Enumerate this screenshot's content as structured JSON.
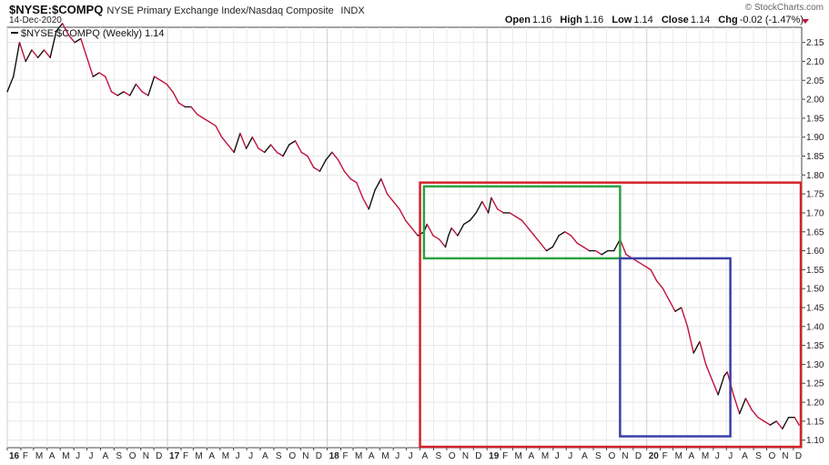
{
  "header": {
    "symbol": "$NYSE:$COMPQ",
    "name": "NYSE Primary Exchange Index/Nasdaq Composite",
    "exchange": "INDX",
    "date": "14-Dec-2020",
    "brand": "© StockCharts.com",
    "open_label": "Open",
    "open": "1.16",
    "high_label": "High",
    "high": "1.16",
    "low_label": "Low",
    "low": "1.14",
    "close_label": "Close",
    "close": "1.14",
    "chg_label": "Chg",
    "chg": "-0.02 (-1.47%)"
  },
  "chart_data": {
    "type": "line",
    "legend_label": "$NYSE:$COMPQ (Weekly) 1.14",
    "legend_position": "top-left",
    "grid": true,
    "ylim": [
      1.08,
      2.19
    ],
    "yticks": [
      1.1,
      1.15,
      1.2,
      1.25,
      1.3,
      1.35,
      1.4,
      1.45,
      1.5,
      1.55,
      1.6,
      1.65,
      1.7,
      1.75,
      1.8,
      1.85,
      1.9,
      1.95,
      2.0,
      2.05,
      2.1,
      2.15
    ],
    "xlim": [
      "2016-01-01",
      "2020-12-20"
    ],
    "x_ticks": [
      {
        "label": "16",
        "date": "2016-01-01",
        "year": true
      },
      {
        "label": "F",
        "date": "2016-02-01"
      },
      {
        "label": "M",
        "date": "2016-03-01"
      },
      {
        "label": "A",
        "date": "2016-04-01"
      },
      {
        "label": "M",
        "date": "2016-05-01"
      },
      {
        "label": "J",
        "date": "2016-06-01"
      },
      {
        "label": "J",
        "date": "2016-07-01"
      },
      {
        "label": "A",
        "date": "2016-08-01"
      },
      {
        "label": "S",
        "date": "2016-09-01"
      },
      {
        "label": "O",
        "date": "2016-10-01"
      },
      {
        "label": "N",
        "date": "2016-11-01"
      },
      {
        "label": "D",
        "date": "2016-12-01"
      },
      {
        "label": "17",
        "date": "2017-01-01",
        "year": true
      },
      {
        "label": "F",
        "date": "2017-02-01"
      },
      {
        "label": "M",
        "date": "2017-03-01"
      },
      {
        "label": "A",
        "date": "2017-04-01"
      },
      {
        "label": "M",
        "date": "2017-05-01"
      },
      {
        "label": "J",
        "date": "2017-06-01"
      },
      {
        "label": "J",
        "date": "2017-07-01"
      },
      {
        "label": "A",
        "date": "2017-08-01"
      },
      {
        "label": "S",
        "date": "2017-09-01"
      },
      {
        "label": "O",
        "date": "2017-10-01"
      },
      {
        "label": "N",
        "date": "2017-11-01"
      },
      {
        "label": "D",
        "date": "2017-12-01"
      },
      {
        "label": "18",
        "date": "2018-01-01",
        "year": true
      },
      {
        "label": "F",
        "date": "2018-02-01"
      },
      {
        "label": "M",
        "date": "2018-03-01"
      },
      {
        "label": "A",
        "date": "2018-04-01"
      },
      {
        "label": "M",
        "date": "2018-05-01"
      },
      {
        "label": "J",
        "date": "2018-06-01"
      },
      {
        "label": "J",
        "date": "2018-07-01"
      },
      {
        "label": "A",
        "date": "2018-08-01"
      },
      {
        "label": "S",
        "date": "2018-09-01"
      },
      {
        "label": "O",
        "date": "2018-10-01"
      },
      {
        "label": "N",
        "date": "2018-11-01"
      },
      {
        "label": "D",
        "date": "2018-12-01"
      },
      {
        "label": "19",
        "date": "2019-01-01",
        "year": true
      },
      {
        "label": "F",
        "date": "2019-02-01"
      },
      {
        "label": "M",
        "date": "2019-03-01"
      },
      {
        "label": "A",
        "date": "2019-04-01"
      },
      {
        "label": "M",
        "date": "2019-05-01"
      },
      {
        "label": "J",
        "date": "2019-06-01"
      },
      {
        "label": "J",
        "date": "2019-07-01"
      },
      {
        "label": "A",
        "date": "2019-08-01"
      },
      {
        "label": "S",
        "date": "2019-09-01"
      },
      {
        "label": "O",
        "date": "2019-10-01"
      },
      {
        "label": "N",
        "date": "2019-11-01"
      },
      {
        "label": "D",
        "date": "2019-12-01"
      },
      {
        "label": "20",
        "date": "2020-01-01",
        "year": true
      },
      {
        "label": "F",
        "date": "2020-02-01"
      },
      {
        "label": "M",
        "date": "2020-03-01"
      },
      {
        "label": "A",
        "date": "2020-04-01"
      },
      {
        "label": "M",
        "date": "2020-05-01"
      },
      {
        "label": "J",
        "date": "2020-06-01"
      },
      {
        "label": "J",
        "date": "2020-07-01"
      },
      {
        "label": "A",
        "date": "2020-08-01"
      },
      {
        "label": "S",
        "date": "2020-09-01"
      },
      {
        "label": "O",
        "date": "2020-10-01"
      },
      {
        "label": "N",
        "date": "2020-11-01"
      },
      {
        "label": "D",
        "date": "2020-12-01"
      }
    ],
    "series": [
      {
        "line_color_up": "#111111",
        "line_color_down": "#c0123c",
        "points": [
          [
            "2016-01-01",
            2.02
          ],
          [
            "2016-01-15",
            2.06
          ],
          [
            "2016-01-29",
            2.15
          ],
          [
            "2016-02-12",
            2.1
          ],
          [
            "2016-02-26",
            2.13
          ],
          [
            "2016-03-11",
            2.11
          ],
          [
            "2016-03-25",
            2.13
          ],
          [
            "2016-04-08",
            2.11
          ],
          [
            "2016-04-22",
            2.18
          ],
          [
            "2016-05-06",
            2.2
          ],
          [
            "2016-05-20",
            2.17
          ],
          [
            "2016-06-03",
            2.15
          ],
          [
            "2016-06-17",
            2.16
          ],
          [
            "2016-07-01",
            2.11
          ],
          [
            "2016-07-15",
            2.06
          ],
          [
            "2016-07-29",
            2.07
          ],
          [
            "2016-08-12",
            2.06
          ],
          [
            "2016-08-26",
            2.02
          ],
          [
            "2016-09-09",
            2.01
          ],
          [
            "2016-09-23",
            2.02
          ],
          [
            "2016-10-07",
            2.01
          ],
          [
            "2016-10-21",
            2.04
          ],
          [
            "2016-11-04",
            2.02
          ],
          [
            "2016-11-18",
            2.01
          ],
          [
            "2016-12-02",
            2.06
          ],
          [
            "2016-12-16",
            2.05
          ],
          [
            "2016-12-30",
            2.04
          ],
          [
            "2017-01-13",
            2.02
          ],
          [
            "2017-01-27",
            1.99
          ],
          [
            "2017-02-10",
            1.98
          ],
          [
            "2017-02-24",
            1.98
          ],
          [
            "2017-03-10",
            1.96
          ],
          [
            "2017-03-24",
            1.95
          ],
          [
            "2017-04-07",
            1.94
          ],
          [
            "2017-04-21",
            1.93
          ],
          [
            "2017-05-05",
            1.9
          ],
          [
            "2017-05-19",
            1.88
          ],
          [
            "2017-06-02",
            1.86
          ],
          [
            "2017-06-16",
            1.91
          ],
          [
            "2017-06-30",
            1.87
          ],
          [
            "2017-07-14",
            1.9
          ],
          [
            "2017-07-28",
            1.87
          ],
          [
            "2017-08-11",
            1.86
          ],
          [
            "2017-08-25",
            1.88
          ],
          [
            "2017-09-08",
            1.86
          ],
          [
            "2017-09-22",
            1.85
          ],
          [
            "2017-10-06",
            1.88
          ],
          [
            "2017-10-20",
            1.89
          ],
          [
            "2017-11-03",
            1.86
          ],
          [
            "2017-11-17",
            1.85
          ],
          [
            "2017-12-01",
            1.82
          ],
          [
            "2017-12-15",
            1.81
          ],
          [
            "2017-12-29",
            1.84
          ],
          [
            "2018-01-12",
            1.86
          ],
          [
            "2018-01-26",
            1.84
          ],
          [
            "2018-02-09",
            1.81
          ],
          [
            "2018-02-23",
            1.79
          ],
          [
            "2018-03-09",
            1.78
          ],
          [
            "2018-03-23",
            1.74
          ],
          [
            "2018-04-06",
            1.71
          ],
          [
            "2018-04-20",
            1.76
          ],
          [
            "2018-05-04",
            1.79
          ],
          [
            "2018-05-18",
            1.75
          ],
          [
            "2018-06-01",
            1.73
          ],
          [
            "2018-06-15",
            1.71
          ],
          [
            "2018-06-29",
            1.68
          ],
          [
            "2018-07-13",
            1.66
          ],
          [
            "2018-07-27",
            1.64
          ],
          [
            "2018-08-10",
            1.65
          ],
          [
            "2018-08-17",
            1.67
          ],
          [
            "2018-08-31",
            1.64
          ],
          [
            "2018-09-14",
            1.63
          ],
          [
            "2018-09-28",
            1.61
          ],
          [
            "2018-10-05",
            1.64
          ],
          [
            "2018-10-12",
            1.66
          ],
          [
            "2018-10-26",
            1.64
          ],
          [
            "2018-11-09",
            1.67
          ],
          [
            "2018-11-23",
            1.68
          ],
          [
            "2018-12-07",
            1.7
          ],
          [
            "2018-12-21",
            1.73
          ],
          [
            "2019-01-04",
            1.7
          ],
          [
            "2019-01-11",
            1.74
          ],
          [
            "2019-01-25",
            1.71
          ],
          [
            "2019-02-08",
            1.7
          ],
          [
            "2019-02-22",
            1.7
          ],
          [
            "2019-03-08",
            1.69
          ],
          [
            "2019-03-22",
            1.68
          ],
          [
            "2019-04-05",
            1.66
          ],
          [
            "2019-04-19",
            1.64
          ],
          [
            "2019-05-03",
            1.62
          ],
          [
            "2019-05-17",
            1.6
          ],
          [
            "2019-05-31",
            1.61
          ],
          [
            "2019-06-14",
            1.64
          ],
          [
            "2019-06-28",
            1.65
          ],
          [
            "2019-07-12",
            1.64
          ],
          [
            "2019-07-26",
            1.62
          ],
          [
            "2019-08-09",
            1.61
          ],
          [
            "2019-08-23",
            1.6
          ],
          [
            "2019-09-06",
            1.6
          ],
          [
            "2019-09-20",
            1.59
          ],
          [
            "2019-10-04",
            1.6
          ],
          [
            "2019-10-18",
            1.6
          ],
          [
            "2019-11-01",
            1.63
          ],
          [
            "2019-11-15",
            1.59
          ],
          [
            "2019-11-29",
            1.58
          ],
          [
            "2019-12-13",
            1.57
          ],
          [
            "2019-12-27",
            1.56
          ],
          [
            "2020-01-10",
            1.55
          ],
          [
            "2020-01-24",
            1.52
          ],
          [
            "2020-02-07",
            1.5
          ],
          [
            "2020-02-21",
            1.47
          ],
          [
            "2020-03-06",
            1.44
          ],
          [
            "2020-03-20",
            1.45
          ],
          [
            "2020-04-03",
            1.4
          ],
          [
            "2020-04-17",
            1.33
          ],
          [
            "2020-05-01",
            1.36
          ],
          [
            "2020-05-15",
            1.3
          ],
          [
            "2020-05-29",
            1.26
          ],
          [
            "2020-06-12",
            1.22
          ],
          [
            "2020-06-26",
            1.27
          ],
          [
            "2020-07-03",
            1.28
          ],
          [
            "2020-07-17",
            1.22
          ],
          [
            "2020-07-31",
            1.17
          ],
          [
            "2020-08-14",
            1.21
          ],
          [
            "2020-08-28",
            1.18
          ],
          [
            "2020-09-11",
            1.16
          ],
          [
            "2020-09-25",
            1.15
          ],
          [
            "2020-10-09",
            1.14
          ],
          [
            "2020-10-23",
            1.15
          ],
          [
            "2020-11-06",
            1.13
          ],
          [
            "2020-11-20",
            1.16
          ],
          [
            "2020-12-04",
            1.16
          ],
          [
            "2020-12-14",
            1.14
          ]
        ]
      }
    ],
    "annotations": [
      {
        "shape": "rectangle",
        "color": "#d2232a",
        "x0": "2018-08-01",
        "x1": "2020-12-20",
        "y0": 1.08,
        "y1": 1.78
      },
      {
        "shape": "rectangle",
        "color": "#2ea043",
        "x0": "2018-08-10",
        "x1": "2019-11-01",
        "y0": 1.58,
        "y1": 1.77
      },
      {
        "shape": "rectangle",
        "color": "#3b3fa8",
        "x0": "2019-11-01",
        "x1": "2020-07-10",
        "y0": 1.11,
        "y1": 1.58
      }
    ]
  }
}
